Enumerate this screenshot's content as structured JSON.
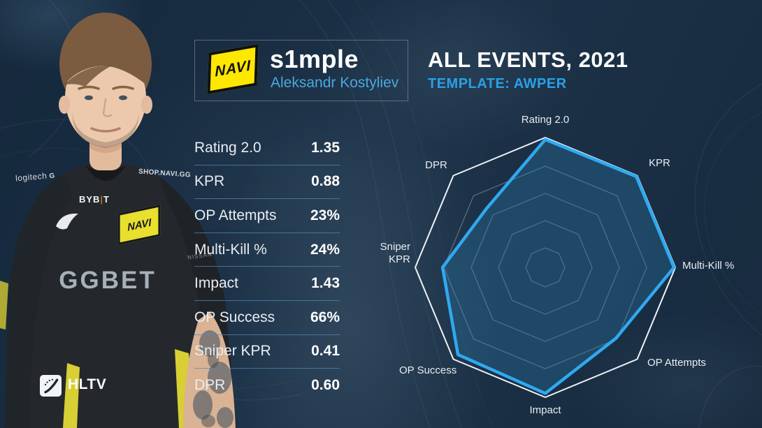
{
  "header": {
    "player_nick": "s1mple",
    "player_name": "Aleksandr Kostyliev",
    "team_logo_text": "NAVI",
    "title": "ALL EVENTS, 2021",
    "subtitle": "TEMPLATE: AWPER"
  },
  "stats_table": {
    "rows": [
      {
        "label": "Rating 2.0",
        "value": "1.35"
      },
      {
        "label": "KPR",
        "value": "0.88"
      },
      {
        "label": "OP Attempts",
        "value": "23%"
      },
      {
        "label": "Multi-Kill %",
        "value": "24%"
      },
      {
        "label": "Impact",
        "value": "1.43"
      },
      {
        "label": "OP Success",
        "value": "66%"
      },
      {
        "label": "Sniper KPR",
        "value": "0.41"
      },
      {
        "label": "DPR",
        "value": "0.60"
      }
    ]
  },
  "chart_data": {
    "type": "radar",
    "title": "ALL EVENTS, 2021 — TEMPLATE: AWPER",
    "categories": [
      "Rating 2.0",
      "KPR",
      "Multi-Kill %",
      "OP Attempts",
      "Impact",
      "OP Success",
      "Sniper KPR",
      "DPR"
    ],
    "stat_values": [
      "1.35",
      "0.88",
      "24%",
      "23%",
      "1.43",
      "66%",
      "0.41",
      "0.60"
    ],
    "radius_fractions": [
      0.985,
      0.99,
      0.99,
      0.77,
      0.97,
      0.95,
      0.79,
      0.64
    ],
    "grid_rings": [
      0.15,
      0.36,
      0.57,
      0.78,
      1.0
    ],
    "accent_color": "#2fa9f0",
    "fill_color": "rgba(43,128,176,0.32)",
    "grid_inner_color": "rgba(190,215,235,0.38)",
    "grid_outer_color": "#eef3f7",
    "legend": "none",
    "grid": "on"
  },
  "jersey": {
    "logitech": "logitech",
    "logitech_mark": "G",
    "shop": "SHOP.NAVI.GG",
    "bybit_prefix": "BYB",
    "bybit_divider": "|",
    "bybit_suffix": "T",
    "chest_logo_text": "NAVI",
    "ggbet": "GGBET",
    "nissan": "NISSAN"
  },
  "footer": {
    "brand": "HLTV"
  }
}
